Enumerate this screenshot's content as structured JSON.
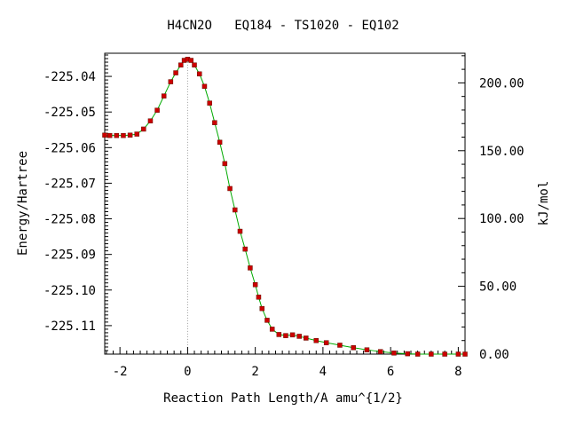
{
  "chart_data": {
    "type": "line",
    "title": "H4CN2O   EQ184 - TS1020 - EQ102",
    "xlabel": "Reaction Path Length/A amu^{1/2}",
    "ylabel": "Energy/Hartree",
    "y2label": "kJ/mol",
    "xlim": [
      -2.45,
      8.2
    ],
    "ylim": [
      -225.118,
      -225.0335
    ],
    "y2lim": [
      0.0,
      221.85
    ],
    "xticks": [
      "-2",
      "0",
      "2",
      "4",
      "6",
      "8"
    ],
    "xtick_values": [
      -2,
      0,
      2,
      4,
      6,
      8
    ],
    "yticks": [
      "-225.04",
      "-225.05",
      "-225.06",
      "-225.07",
      "-225.08",
      "-225.09",
      "-225.10",
      "-225.11"
    ],
    "ytick_values": [
      -225.04,
      -225.05,
      -225.06,
      -225.07,
      -225.08,
      -225.09,
      -225.1,
      -225.11
    ],
    "y2ticks": [
      "200.00",
      "150.00",
      "100.00",
      "50.00",
      "0.00"
    ],
    "y2tick_values": [
      200,
      150,
      100,
      50,
      0
    ],
    "ts_marker_x": 0,
    "series": [
      {
        "line_color": "#00aa00",
        "marker_color": "#cc0000",
        "x": [
          -2.45,
          -2.3,
          -2.1,
          -1.9,
          -1.7,
          -1.5,
          -1.3,
          -1.1,
          -0.9,
          -0.7,
          -0.5,
          -0.35,
          -0.2,
          -0.1,
          0.0,
          0.1,
          0.2,
          0.35,
          0.5,
          0.65,
          0.8,
          0.95,
          1.1,
          1.25,
          1.4,
          1.55,
          1.7,
          1.85,
          2.0,
          2.1,
          2.2,
          2.35,
          2.5,
          2.7,
          2.9,
          3.1,
          3.3,
          3.5,
          3.8,
          4.1,
          4.5,
          4.9,
          5.3,
          5.7,
          6.1,
          6.5,
          6.8,
          7.2,
          7.6,
          8.0,
          8.2
        ],
        "y": [
          -225.0565,
          -225.0566,
          -225.0566,
          -225.0566,
          -225.0565,
          -225.0562,
          -225.0548,
          -225.0525,
          -225.0495,
          -225.0455,
          -225.0415,
          -225.039,
          -225.0368,
          -225.0355,
          -225.0352,
          -225.0355,
          -225.0368,
          -225.0393,
          -225.0428,
          -225.0475,
          -225.053,
          -225.0585,
          -225.0645,
          -225.0715,
          -225.0775,
          -225.0835,
          -225.0885,
          -225.0938,
          -225.0985,
          -225.102,
          -225.1052,
          -225.1085,
          -225.111,
          -225.1125,
          -225.1128,
          -225.1126,
          -225.113,
          -225.1135,
          -225.1142,
          -225.1148,
          -225.1155,
          -225.1162,
          -225.1168,
          -225.1173,
          -225.1177,
          -225.1179,
          -225.118,
          -225.118,
          -225.118,
          -225.118,
          -225.118
        ]
      }
    ],
    "grid": false,
    "legend": "none"
  }
}
